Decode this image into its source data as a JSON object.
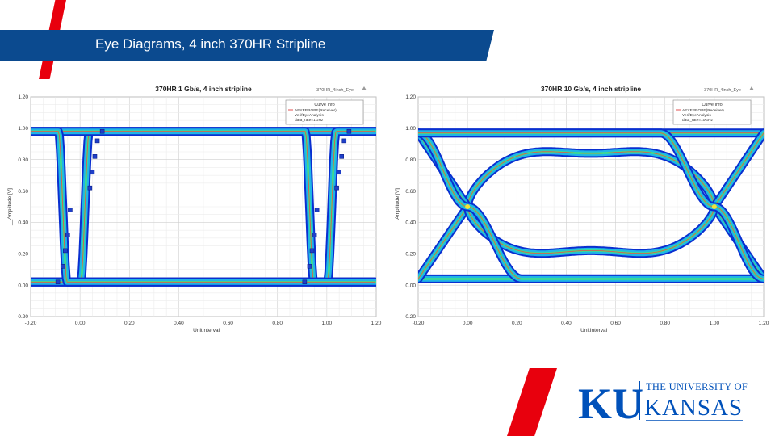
{
  "slide": {
    "title": "Eye Diagrams, 4 inch 370HR Stripline"
  },
  "colors": {
    "banner": "#0b4a8f",
    "accent_red": "#e8000d",
    "ku_blue": "#0051ba"
  },
  "logo": {
    "ku": "KU",
    "line1": "THE UNIVERSITY OF",
    "line2": "KANSAS"
  },
  "chart_data": [
    {
      "type": "line",
      "title": "370HR 1 Gb/s, 4 inch stripline",
      "corner_label": "370HR_4inch_Eye",
      "xlabel": "__UnitInterval",
      "ylabel": "__Amplitude [V]",
      "xlim": [
        -0.2,
        1.2
      ],
      "ylim": [
        -0.2,
        1.2
      ],
      "x_ticks": [
        "-0.20",
        "0.00",
        "0.20",
        "0.40",
        "0.60",
        "0.80",
        "1.00",
        "1.20"
      ],
      "y_ticks": [
        "-0.20",
        "0.00",
        "0.20",
        "0.40",
        "0.60",
        "0.80",
        "1.00",
        "1.20"
      ],
      "grid": true,
      "legend": {
        "position": "top-right",
        "title": "Curve Info",
        "lines": [
          "AEYEPROBE(Receiver)",
          "VerifEyeAnalysis",
          "data_rate=1GHz"
        ]
      },
      "eye": {
        "rise_t": 0.02,
        "fall_t": 0.93,
        "tr": 0.035,
        "tau": 0.018,
        "high": 0.98,
        "low": 0.02,
        "mask": true
      },
      "mask_x": [
        -0.09,
        -0.07,
        -0.06,
        -0.05,
        -0.04,
        0.04,
        0.05,
        0.06,
        0.07,
        0.09
      ],
      "mask_y": [
        0.02,
        0.12,
        0.22,
        0.32,
        0.48,
        0.62,
        0.72,
        0.82,
        0.92,
        0.98
      ]
    },
    {
      "type": "line",
      "title": "370HR 10 Gb/s, 4 inch stripline",
      "corner_label": "370HR_4inch_Eye",
      "xlabel": "__UnitInterval",
      "ylabel": "__Amplitude [V]",
      "xlim": [
        -0.2,
        1.2
      ],
      "ylim": [
        -0.2,
        1.2
      ],
      "x_ticks": [
        "-0.20",
        "0.00",
        "0.20",
        "0.40",
        "0.60",
        "0.80",
        "1.00",
        "1.20"
      ],
      "y_ticks": [
        "-0.20",
        "0.00",
        "0.20",
        "0.40",
        "0.60",
        "0.80",
        "1.00",
        "1.20"
      ],
      "grid": true,
      "legend": {
        "position": "top-right",
        "title": "Curve Info",
        "lines": [
          "AEYEPROBE(Receiver)",
          "VerifEyeAnalysis",
          "data_rate=10GHz"
        ]
      },
      "eye": {
        "cross1": 0.0,
        "cross2": 1.0,
        "top": 0.88,
        "bottom": 0.18,
        "high": 0.97,
        "low": 0.04,
        "mid": 0.5
      }
    }
  ]
}
